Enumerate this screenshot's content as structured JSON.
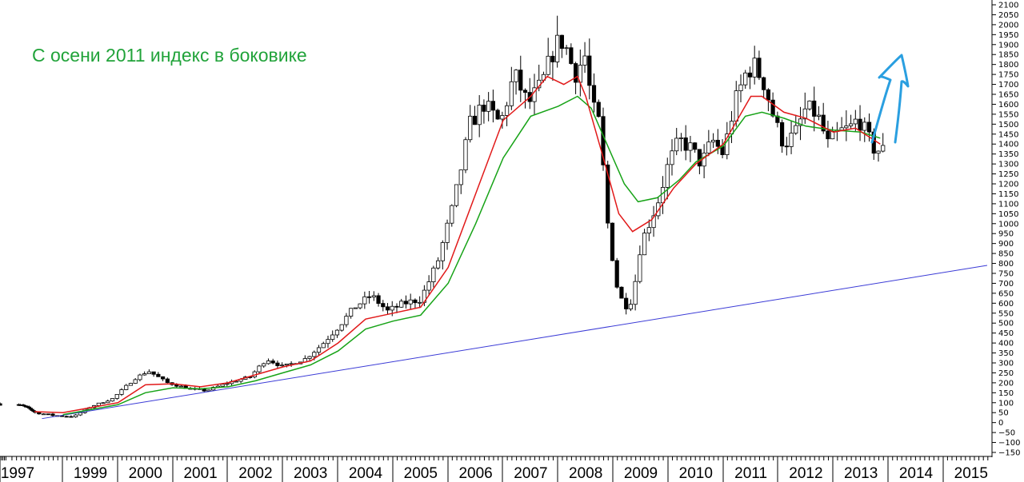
{
  "chart_data": {
    "type": "candlestick",
    "title": "",
    "annotation": "С осени 2011 индекс в боковике",
    "yaxis": {
      "side": "right",
      "min": -150,
      "max": 2100,
      "step": 50
    },
    "xaxis": {
      "labels": [
        "1997",
        "1999",
        "2000",
        "2001",
        "2002",
        "2003",
        "2004",
        "2005",
        "2006",
        "2007",
        "2008",
        "2009",
        "2010",
        "2011",
        "2012",
        "2013",
        "2014",
        "2015"
      ]
    },
    "grid": false,
    "legend": "none",
    "colors": {
      "annotation": "#21a33a",
      "ma_fast": "#e11919",
      "ma_slow": "#17a317",
      "trendline": "#3b3bd6",
      "arrow": "#2a9fe0",
      "candle": "#000000",
      "axis": "#000000"
    },
    "trendline": {
      "from": {
        "year": 1998.12,
        "value": 20
      },
      "to": {
        "year": 2015.3,
        "value": 790
      }
    },
    "ma_fast": [
      [
        1997.95,
        55
      ],
      [
        1998.5,
        50
      ],
      [
        1999.0,
        75
      ],
      [
        1999.5,
        100
      ],
      [
        2000.0,
        190
      ],
      [
        2000.5,
        195
      ],
      [
        2001.0,
        180
      ],
      [
        2001.5,
        200
      ],
      [
        2002.0,
        240
      ],
      [
        2002.5,
        280
      ],
      [
        2003.0,
        310
      ],
      [
        2003.5,
        400
      ],
      [
        2004.0,
        520
      ],
      [
        2004.5,
        550
      ],
      [
        2005.0,
        580
      ],
      [
        2005.5,
        780
      ],
      [
        2006.0,
        1150
      ],
      [
        2006.5,
        1520
      ],
      [
        2007.0,
        1640
      ],
      [
        2007.3,
        1740
      ],
      [
        2007.6,
        1700
      ],
      [
        2007.85,
        1740
      ],
      [
        2008.0,
        1640
      ],
      [
        2008.3,
        1350
      ],
      [
        2008.6,
        1050
      ],
      [
        2008.85,
        960
      ],
      [
        2009.2,
        1020
      ],
      [
        2009.6,
        1180
      ],
      [
        2010.0,
        1300
      ],
      [
        2010.5,
        1400
      ],
      [
        2011.0,
        1640
      ],
      [
        2011.2,
        1640
      ],
      [
        2011.6,
        1560
      ],
      [
        2012.0,
        1530
      ],
      [
        2012.5,
        1460
      ],
      [
        2012.9,
        1480
      ],
      [
        2013.35,
        1400
      ]
    ],
    "ma_slow": [
      [
        1998.5,
        40
      ],
      [
        1999.0,
        65
      ],
      [
        1999.5,
        90
      ],
      [
        2000.0,
        150
      ],
      [
        2000.5,
        175
      ],
      [
        2001.0,
        170
      ],
      [
        2001.5,
        180
      ],
      [
        2002.0,
        210
      ],
      [
        2002.5,
        250
      ],
      [
        2003.0,
        290
      ],
      [
        2003.5,
        360
      ],
      [
        2004.0,
        470
      ],
      [
        2004.5,
        510
      ],
      [
        2005.0,
        540
      ],
      [
        2005.5,
        700
      ],
      [
        2006.0,
        1000
      ],
      [
        2006.5,
        1330
      ],
      [
        2007.0,
        1540
      ],
      [
        2007.5,
        1590
      ],
      [
        2007.85,
        1640
      ],
      [
        2008.1,
        1580
      ],
      [
        2008.4,
        1390
      ],
      [
        2008.7,
        1200
      ],
      [
        2008.95,
        1110
      ],
      [
        2009.3,
        1130
      ],
      [
        2009.7,
        1220
      ],
      [
        2010.0,
        1310
      ],
      [
        2010.5,
        1390
      ],
      [
        2010.9,
        1540
      ],
      [
        2011.2,
        1560
      ],
      [
        2011.6,
        1530
      ],
      [
        2012.0,
        1490
      ],
      [
        2012.5,
        1470
      ],
      [
        2013.0,
        1460
      ],
      [
        2013.35,
        1430
      ]
    ],
    "candles_anchor": [
      [
        1996.9,
        95
      ],
      [
        1997.3,
        85
      ],
      [
        1997.7,
        70
      ],
      [
        1998.0,
        50
      ],
      [
        1998.35,
        35
      ],
      [
        1998.7,
        30
      ],
      [
        1999.0,
        80
      ],
      [
        1999.4,
        120
      ],
      [
        1999.8,
        220
      ],
      [
        2000.05,
        260
      ],
      [
        2000.4,
        200
      ],
      [
        2000.8,
        170
      ],
      [
        2001.1,
        160
      ],
      [
        2001.5,
        200
      ],
      [
        2001.9,
        230
      ],
      [
        2002.2,
        320
      ],
      [
        2002.5,
        280
      ],
      [
        2002.9,
        320
      ],
      [
        2003.2,
        390
      ],
      [
        2003.5,
        480
      ],
      [
        2003.8,
        580
      ],
      [
        2004.1,
        640
      ],
      [
        2004.4,
        560
      ],
      [
        2004.7,
        600
      ],
      [
        2005.0,
        620
      ],
      [
        2005.3,
        800
      ],
      [
        2005.6,
        1100
      ],
      [
        2005.9,
        1500
      ],
      [
        2006.15,
        1600
      ],
      [
        2006.45,
        1500
      ],
      [
        2006.7,
        1750
      ],
      [
        2006.95,
        1600
      ],
      [
        2007.2,
        1700
      ],
      [
        2007.45,
        1900
      ],
      [
        2007.6,
        1920
      ],
      [
        2007.8,
        1750
      ],
      [
        2008.0,
        1850
      ],
      [
        2008.1,
        1600
      ],
      [
        2008.25,
        1500
      ],
      [
        2008.4,
        1000
      ],
      [
        2008.55,
        700
      ],
      [
        2008.7,
        580
      ],
      [
        2008.85,
        620
      ],
      [
        2009.0,
        900
      ],
      [
        2009.15,
        1000
      ],
      [
        2009.3,
        1100
      ],
      [
        2009.5,
        1300
      ],
      [
        2009.7,
        1420
      ],
      [
        2009.9,
        1380
      ],
      [
        2010.1,
        1300
      ],
      [
        2010.3,
        1420
      ],
      [
        2010.5,
        1350
      ],
      [
        2010.7,
        1600
      ],
      [
        2010.9,
        1750
      ],
      [
        2011.05,
        1800
      ],
      [
        2011.25,
        1700
      ],
      [
        2011.45,
        1500
      ],
      [
        2011.6,
        1400
      ],
      [
        2011.8,
        1450
      ],
      [
        2012.0,
        1580
      ],
      [
        2012.2,
        1550
      ],
      [
        2012.4,
        1400
      ],
      [
        2012.6,
        1460
      ],
      [
        2012.8,
        1480
      ],
      [
        2012.95,
        1530
      ],
      [
        2013.1,
        1450
      ],
      [
        2013.25,
        1370
      ],
      [
        2013.4,
        1370
      ]
    ]
  }
}
